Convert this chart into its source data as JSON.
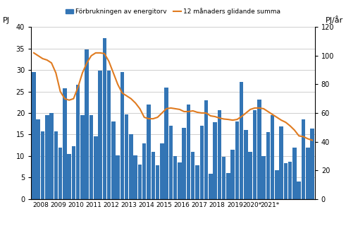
{
  "bar_values": [
    29.5,
    18.5,
    15.8,
    19.5,
    20.0,
    15.8,
    12.0,
    25.8,
    10.5,
    12.2,
    26.5,
    19.5,
    34.8,
    19.5,
    14.5,
    29.8,
    37.5,
    29.8,
    18.0,
    10.2,
    29.5,
    19.7,
    15.0,
    10.2,
    8.0,
    13.0,
    22.0,
    11.0,
    7.8,
    13.0,
    26.0,
    17.0,
    9.9,
    8.5,
    16.5,
    22.0,
    11.0,
    7.8,
    17.0,
    23.0,
    5.8,
    17.8,
    20.7,
    9.8,
    6.0,
    11.5,
    18.0,
    27.3,
    16.0,
    11.0,
    20.7,
    23.2,
    10.0,
    15.6,
    19.5,
    6.7,
    16.8,
    8.3,
    8.6,
    11.9,
    4.0,
    18.5,
    12.0,
    16.3
  ],
  "line_values": [
    102.0,
    100.0,
    98.0,
    97.0,
    95.0,
    88.0,
    75.0,
    70.0,
    69.0,
    70.0,
    78.0,
    88.0,
    95.0,
    100.0,
    102.0,
    102.0,
    101.5,
    96.0,
    88.0,
    80.0,
    74.0,
    72.0,
    70.0,
    67.0,
    63.0,
    57.0,
    56.0,
    56.0,
    57.0,
    60.0,
    63.0,
    63.5,
    63.0,
    62.5,
    61.0,
    61.0,
    61.5,
    60.5,
    60.0,
    60.0,
    58.0,
    57.5,
    56.5,
    55.8,
    55.5,
    55.0,
    55.5,
    57.5,
    60.0,
    62.5,
    63.5,
    63.5,
    63.0,
    61.0,
    59.0,
    57.0,
    55.0,
    53.5,
    51.0,
    48.0,
    44.0,
    43.5,
    42.0,
    41.0
  ],
  "bar_color": "#3375b5",
  "line_color": "#e07b20",
  "ylabel_left": "PJ",
  "ylabel_right": "PJ/år",
  "ylim_left": [
    0,
    40
  ],
  "ylim_right": [
    0,
    120
  ],
  "yticks_left": [
    0,
    5,
    10,
    15,
    20,
    25,
    30,
    35,
    40
  ],
  "yticks_right": [
    0,
    20,
    40,
    60,
    80,
    100,
    120
  ],
  "year_labels": [
    "2008",
    "2009",
    "2010",
    "2011",
    "2012",
    "2013",
    "2014",
    "2015",
    "2016",
    "2017",
    "2018",
    "2019",
    "2020*",
    "2021*"
  ],
  "legend_bar": "Förbrukningen av energitorv",
  "legend_line": "12 månaders glidande summa",
  "background_color": "#ffffff",
  "grid_color": "#c8c8c8"
}
